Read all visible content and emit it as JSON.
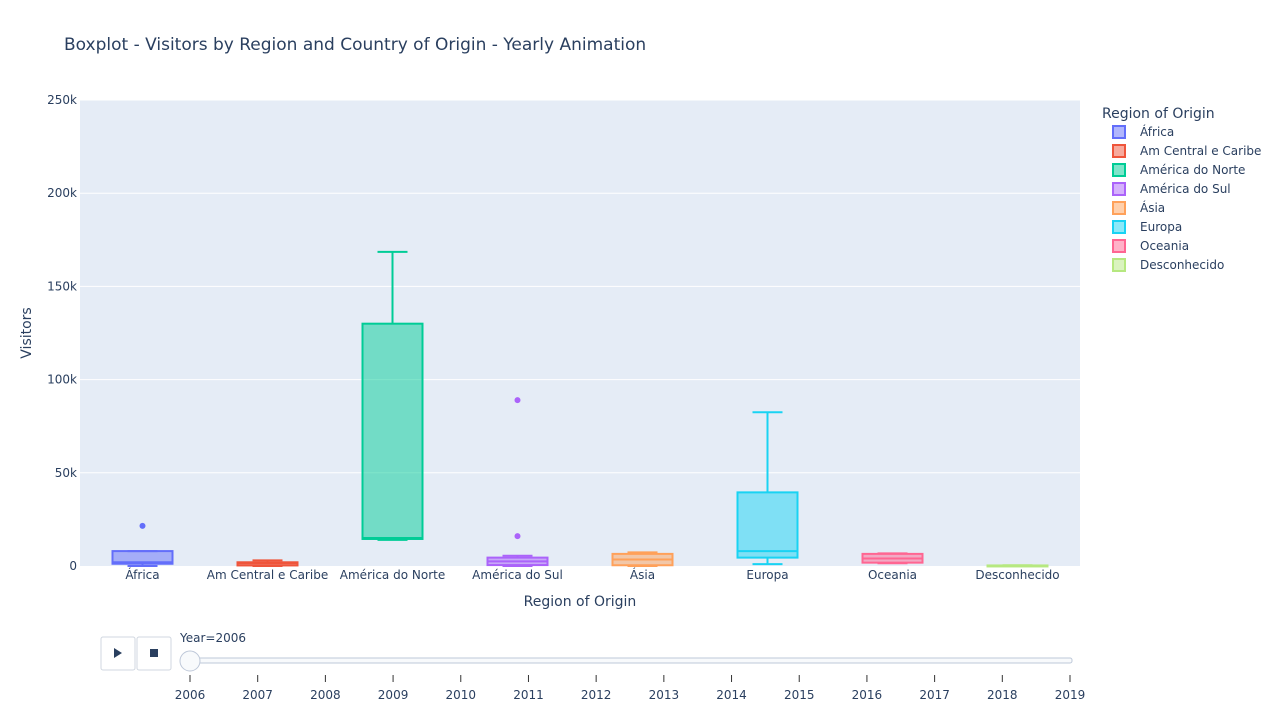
{
  "chart_data": {
    "type": "box",
    "title": "Boxplot - Visitors by Region and Country of Origin - Yearly Animation",
    "xlabel": "Region of Origin",
    "ylabel": "Visitors",
    "ylim": [
      0,
      250000
    ],
    "yticks": [
      0,
      50000,
      100000,
      150000,
      200000,
      250000
    ],
    "ytick_labels": [
      "0",
      "50k",
      "100k",
      "150k",
      "200k",
      "250k"
    ],
    "grid": true,
    "legend": {
      "title": "Region of Origin",
      "placement": "right"
    },
    "categories": [
      "África",
      "Am Central e Caribe",
      "América do Norte",
      "América do Sul",
      "Ásia",
      "Europa",
      "Oceania",
      "Desconhecido"
    ],
    "series": [
      {
        "name": "África",
        "color": "#636efa",
        "min": 0,
        "q1": 1200,
        "median": 2000,
        "q3": 8000,
        "max": 8000,
        "outliers": [
          21500
        ]
      },
      {
        "name": "Am Central e Caribe",
        "color": "#ef553b",
        "min": 0,
        "q1": 300,
        "median": 1500,
        "q3": 2000,
        "max": 3000,
        "outliers": []
      },
      {
        "name": "América do Norte",
        "color": "#00cc96",
        "min": 14000,
        "q1": 14500,
        "median": 15000,
        "q3": 130000,
        "max": 168500,
        "outliers": []
      },
      {
        "name": "América do Sul",
        "color": "#ab63fa",
        "min": 0,
        "q1": 500,
        "median": 2500,
        "q3": 4500,
        "max": 5500,
        "outliers": [
          16000,
          89000
        ]
      },
      {
        "name": "Ásia",
        "color": "#ffa15a",
        "min": 0,
        "q1": 400,
        "median": 3500,
        "q3": 6500,
        "max": 7300,
        "outliers": []
      },
      {
        "name": "Europa",
        "color": "#19d3f3",
        "min": 1000,
        "q1": 4500,
        "median": 8000,
        "q3": 39500,
        "max": 82500,
        "outliers": []
      },
      {
        "name": "Oceania",
        "color": "#ff6692",
        "min": 1500,
        "q1": 1800,
        "median": 4000,
        "q3": 6500,
        "max": 6800,
        "outliers": []
      },
      {
        "name": "Desconhecido",
        "color": "#b6e880",
        "min": 0,
        "q1": 50,
        "median": 150,
        "q3": 300,
        "max": 400,
        "outliers": []
      }
    ]
  },
  "animation": {
    "current_label": "Year=2006",
    "current_year": 2006,
    "years": [
      "2006",
      "2007",
      "2008",
      "2009",
      "2010",
      "2011",
      "2012",
      "2013",
      "2014",
      "2015",
      "2016",
      "2017",
      "2018",
      "2019"
    ],
    "play_icon": "play-icon",
    "stop_icon": "stop-icon"
  }
}
